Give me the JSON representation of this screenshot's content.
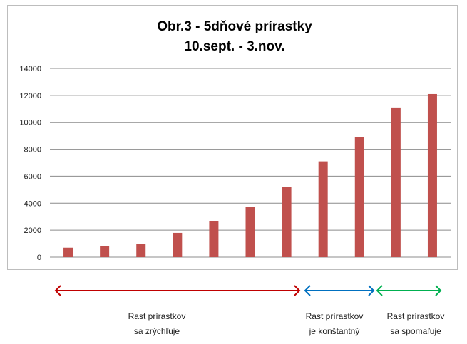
{
  "chart_data": {
    "type": "bar",
    "title": [
      "Obr.3 - 5dňové prírastky",
      "10.sept. - 3.nov."
    ],
    "xlabel": "",
    "ylabel": "",
    "ylim": [
      0,
      14000
    ],
    "yticks": [
      0,
      2000,
      4000,
      6000,
      8000,
      10000,
      12000,
      14000
    ],
    "grid": true,
    "bar_color": "#c0504d",
    "values": [
      700,
      800,
      1000,
      1800,
      2650,
      3750,
      5200,
      7100,
      8900,
      11100,
      12100
    ]
  },
  "annotations": [
    {
      "lines": [
        "Rast prírastkov",
        "sa zrýchľuje"
      ],
      "color": "#c00000"
    },
    {
      "lines": [
        "Rast prírastkov",
        "je konštantný"
      ],
      "color": "#0070c0"
    },
    {
      "lines": [
        "Rast prírastkov",
        "sa spomaľuje"
      ],
      "color": "#00b050"
    }
  ]
}
